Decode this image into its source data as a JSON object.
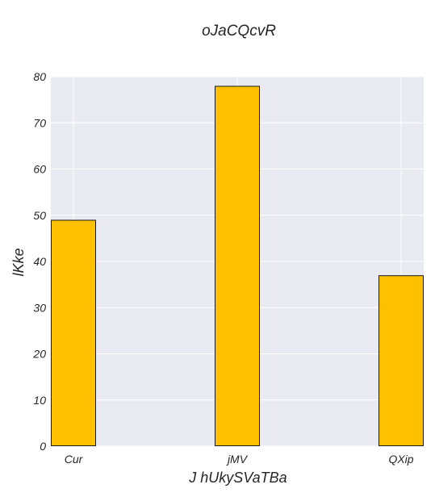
{
  "chart_data": {
    "type": "bar",
    "title": "oJaCQcvR",
    "xlabel": "J hUkySVaTBa",
    "ylabel": "lKke",
    "categories": [
      "Cur",
      "jMV",
      "QXip"
    ],
    "values": [
      49,
      78,
      37
    ],
    "ylim": [
      0,
      80
    ],
    "yticks": [
      0,
      10,
      20,
      30,
      40,
      50,
      60,
      70,
      80
    ],
    "grid": true,
    "colors": {
      "bar": "#ffc000",
      "bar_edge": "#1a1a1a",
      "plot_background": "#eaeaf2",
      "grid": "#ffffff"
    }
  }
}
